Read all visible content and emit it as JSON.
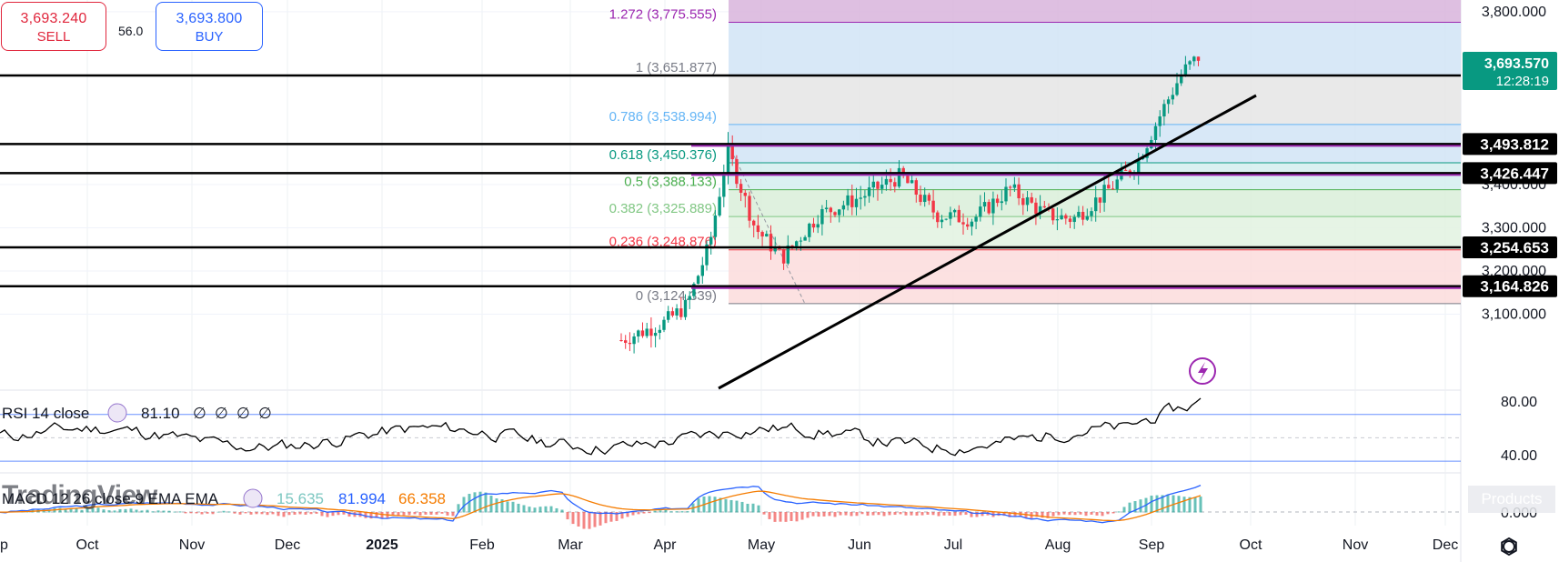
{
  "trade_panel": {
    "sell_price": "3,693.240",
    "sell_label": "SELL",
    "spread": "56.0",
    "buy_price": "3,693.800",
    "buy_label": "BUY"
  },
  "watermark": "TradingView",
  "products_label": "Products",
  "colors": {
    "up_candle": "#089981",
    "down_candle": "#f23645",
    "fib_1_zone": "#d1e4f6",
    "fib_0786_zone": "#e5e5e5",
    "fib_green_zone": "#e2f2e0",
    "fib_red_zone": "#fcdcdc",
    "fib_top_zone": "#d8b4dc",
    "rsi_line": "#000000",
    "macd_line": "#2962ff",
    "signal_line": "#f57c00"
  },
  "chart_data": [
    {
      "type": "candlestick",
      "panel": "price",
      "x_ticks": [
        "p",
        "Oct",
        "Nov",
        "Dec",
        "2025",
        "Feb",
        "Mar",
        "Apr",
        "May",
        "Jun",
        "Jul",
        "Aug",
        "Sep",
        "Oct",
        "Nov",
        "Dec"
      ],
      "y_ticks": [
        "3,800.000",
        "3,400.000",
        "3,300.000",
        "3,200.000",
        "3,100.000"
      ],
      "ylim": [
        3040,
        3830
      ],
      "fib_levels": [
        {
          "label": "1.272 (3,775.555)",
          "value": 3775.555,
          "color": "#9c27b0"
        },
        {
          "label": "1 (3,651.877)",
          "value": 3651.877,
          "color": "#787b86"
        },
        {
          "label": "0.786 (3,538.994)",
          "value": 3538.994,
          "color": "#64b5f6"
        },
        {
          "label": "0.618 (3,450.376)",
          "value": 3450.376,
          "color": "#089981"
        },
        {
          "label": "0.5 (3,388.133)",
          "value": 3388.133,
          "color": "#4caf50"
        },
        {
          "label": "0.382 (3,325.889)",
          "value": 3325.889,
          "color": "#81c784"
        },
        {
          "label": "0.236 (3,248.876)",
          "value": 3248.876,
          "color": "#f23645"
        },
        {
          "label": "0 (3,124.339)",
          "value": 3124.339,
          "color": "#787b86"
        }
      ],
      "horizontal_lines": [
        {
          "label": "3,652.346",
          "value": 3652.346
        },
        {
          "label": "3,493.812",
          "value": 3493.812
        },
        {
          "label": "3,426.447",
          "value": 3426.447
        },
        {
          "label": "3,254.653",
          "value": 3254.653
        },
        {
          "label": "3,164.826",
          "value": 3164.826
        }
      ],
      "last_price": {
        "value": "3,693.570",
        "countdown": "12:28:19"
      },
      "trendline": {
        "from_month": "Apr",
        "from_value": 3040,
        "to_month": "Sep",
        "to_value": 3600
      },
      "candles_note": "daily gold candles rising from ~3,050 in early Apr to ~3,690 mid-Sep"
    },
    {
      "type": "line",
      "panel": "rsi",
      "title": "RSI 14 close",
      "last_value": "81.10",
      "placeholders": [
        "∅",
        "∅",
        "∅",
        "∅"
      ],
      "y_ticks": [
        "80.00",
        "40.00"
      ],
      "bands": [
        70,
        50,
        30
      ],
      "ylim": [
        20,
        90
      ]
    },
    {
      "type": "line",
      "panel": "macd",
      "title": "MACD 12 26 close 9 EMA EMA",
      "values": {
        "histogram": "15.635",
        "macd": "81.994",
        "signal": "66.358"
      },
      "y_ticks": [
        "0.000"
      ],
      "series": [
        {
          "name": "MACD",
          "color": "#2962ff"
        },
        {
          "name": "Signal",
          "color": "#f57c00"
        }
      ]
    }
  ]
}
